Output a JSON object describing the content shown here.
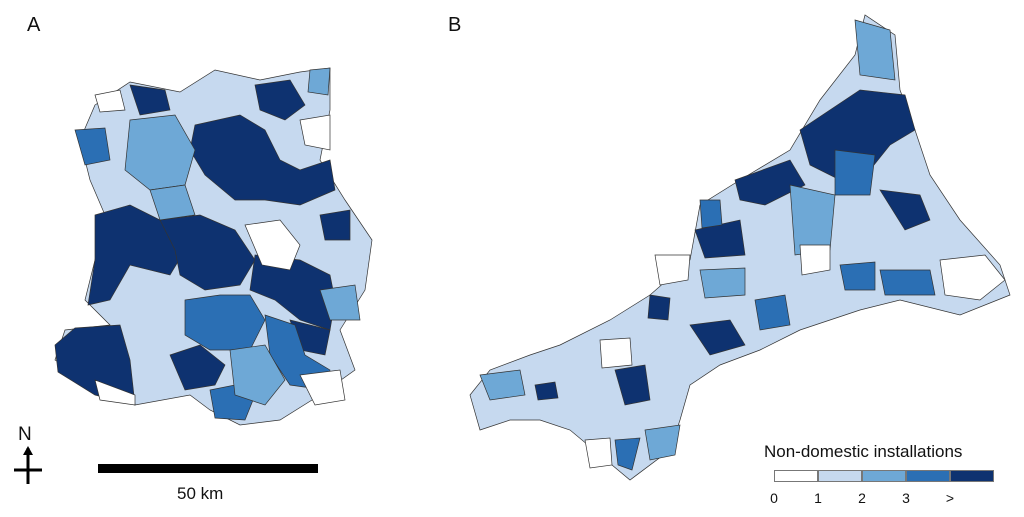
{
  "panels": [
    {
      "label": "A"
    },
    {
      "label": "B"
    }
  ],
  "north_arrow": {
    "letter": "N",
    "icon": "north-arrow-icon"
  },
  "scale_bar": {
    "label": "50 km"
  },
  "legend": {
    "title": "Non-domestic installations",
    "classes": [
      {
        "label": "0",
        "color": "#ffffff"
      },
      {
        "label": "1",
        "color": "#c6d9ef"
      },
      {
        "label": "2",
        "color": "#6ea8d6"
      },
      {
        "label": "3",
        "color": "#2b6fb4"
      },
      {
        "label": ">",
        "color": "#0e3270"
      }
    ]
  }
}
